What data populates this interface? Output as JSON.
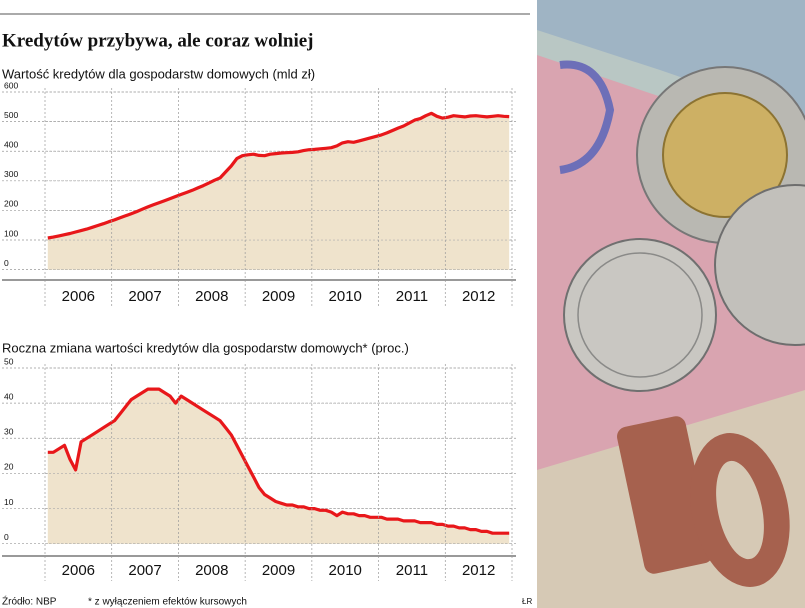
{
  "title": "Kredytów przybywa, ale coraz wolniej",
  "chart_data": [
    {
      "type": "area",
      "title": "Wartość kredytów dla gospodarstw domowych (mld zł)",
      "categories": [
        null,
        null,
        null,
        null,
        null,
        null,
        "2006",
        null,
        null,
        null,
        null,
        null,
        null,
        null,
        null,
        null,
        null,
        null,
        "2007",
        null,
        null,
        null,
        null,
        null,
        null,
        null,
        null,
        null,
        null,
        null,
        "2008",
        null,
        null,
        null,
        null,
        null,
        null,
        null,
        null,
        null,
        null,
        null,
        "2009",
        null,
        null,
        null,
        null,
        null,
        null,
        null,
        null,
        null,
        null,
        null,
        "2010",
        null,
        null,
        null,
        null,
        null,
        null,
        null,
        null,
        null,
        null,
        null,
        "2011",
        null,
        null,
        null,
        null,
        null,
        null,
        null,
        null,
        null,
        null,
        null,
        "2012",
        null,
        null,
        null,
        null,
        null
      ],
      "values": [
        107,
        110,
        114,
        118,
        122,
        127,
        132,
        137,
        143,
        149,
        155,
        162,
        168,
        175,
        182,
        189,
        196,
        204,
        212,
        219,
        226,
        233,
        240,
        247,
        254,
        261,
        268,
        276,
        284,
        293,
        302,
        310,
        330,
        350,
        375,
        385,
        388,
        390,
        386,
        385,
        390,
        392,
        394,
        395,
        396,
        398,
        402,
        405,
        406,
        408,
        410,
        412,
        418,
        428,
        432,
        430,
        435,
        440,
        445,
        450,
        455,
        462,
        470,
        478,
        485,
        495,
        505,
        510,
        520,
        528,
        518,
        512,
        515,
        520,
        518,
        516,
        519,
        520,
        518,
        516,
        518,
        520,
        518,
        517
      ],
      "color": "#e8171a",
      "fill": "#efe3cc",
      "ylim": [
        -35,
        600
      ],
      "yticks": [
        0,
        100,
        200,
        300,
        400,
        500,
        600
      ],
      "grid": true
    },
    {
      "type": "area",
      "title": "Roczna zmiana wartości kredytów dla gospodarstw domowych* (proc.)",
      "categories": [
        null,
        null,
        null,
        null,
        null,
        null,
        "2006",
        null,
        null,
        null,
        null,
        null,
        null,
        null,
        null,
        null,
        null,
        null,
        "2007",
        null,
        null,
        null,
        null,
        null,
        null,
        null,
        null,
        null,
        null,
        null,
        "2008",
        null,
        null,
        null,
        null,
        null,
        null,
        null,
        null,
        null,
        null,
        null,
        "2009",
        null,
        null,
        null,
        null,
        null,
        null,
        null,
        null,
        null,
        null,
        null,
        "2010",
        null,
        null,
        null,
        null,
        null,
        null,
        null,
        null,
        null,
        null,
        null,
        "2011",
        null,
        null,
        null,
        null,
        null,
        null,
        null,
        null,
        null,
        null,
        null,
        "2012",
        null,
        null,
        null,
        null,
        null
      ],
      "values": [
        26,
        26,
        27,
        28,
        24,
        21,
        29,
        30,
        31,
        32,
        33,
        34,
        35,
        37,
        39,
        41,
        42,
        43,
        44,
        44,
        44,
        43,
        42,
        40,
        42,
        41,
        40,
        39,
        38,
        37,
        36,
        35,
        33,
        31,
        28,
        25,
        22,
        19,
        16,
        14,
        13,
        12,
        11.5,
        11,
        11,
        10.5,
        10.5,
        10,
        10,
        9.5,
        9.5,
        9,
        8,
        9,
        8.5,
        8.5,
        8,
        8,
        7.5,
        7.5,
        7.5,
        7,
        7,
        7,
        6.5,
        6.5,
        6.5,
        6,
        6,
        6,
        5.5,
        5.5,
        5,
        5,
        4.5,
        4.5,
        4,
        4,
        3.5,
        3.5,
        3,
        3,
        3,
        3
      ],
      "color": "#e8171a",
      "fill": "#efe3cc",
      "ylim": [
        -3.5,
        50
      ],
      "yticks": [
        0,
        10,
        20,
        30,
        40,
        50
      ],
      "grid": true
    }
  ],
  "source": "Źródło: NBP",
  "note": "* z wyłączeniem efektów kursowych",
  "credit": "ŁR"
}
